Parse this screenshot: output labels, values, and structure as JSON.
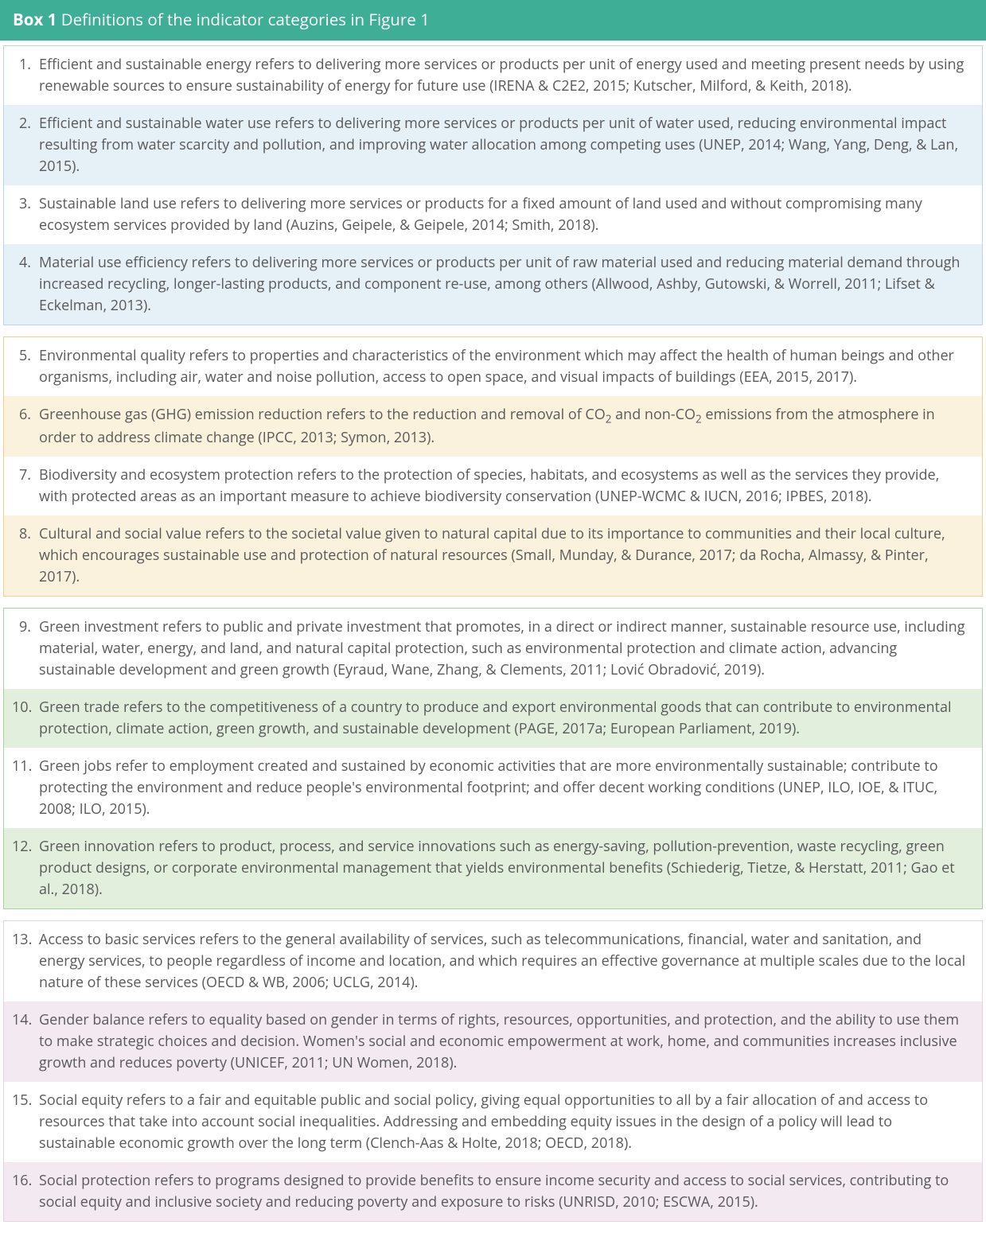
{
  "header": {
    "strong": "Box 1",
    "rest": " Definitions of the indicator categories in Figure 1",
    "bg": "#3eae96"
  },
  "groups": [
    {
      "border": "#b6d8ea",
      "bg_odd": "#ffffff",
      "bg_even": "#e5f0f7",
      "items": [
        {
          "n": "1.",
          "t": "Efficient and sustainable energy refers to delivering more services or products per unit of energy used and meeting present needs by using renewable sources to ensure sustainability of energy for future use (IRENA & C2E2, 2015; Kutscher, Milford, & Keith, 2018)."
        },
        {
          "n": "2.",
          "t": "Efficient and sustainable water use refers to delivering more services or products per unit of water used, reducing environmental impact resulting from water scarcity and pollution, and improving water allocation among competing uses (UNEP, 2014; Wang, Yang, Deng, & Lan, 2015)."
        },
        {
          "n": "3.",
          "t": "Sustainable land use refers to delivering more services or products for a fixed amount of land used and without compromising many ecosystem services provided by land (Auzins, Geipele, & Geipele, 2014; Smith, 2018)."
        },
        {
          "n": "4.",
          "t": "Material use efficiency refers to delivering more services or products per unit of raw material used and reducing material demand through increased recycling, longer-lasting products, and component re-use, among others (Allwood, Ashby, Gutowski, & Worrell, 2011; Lifset & Eckelman, 2013)."
        }
      ]
    },
    {
      "border": "#f0cf8f",
      "bg_odd": "#ffffff",
      "bg_even": "#fbf2de",
      "items": [
        {
          "n": "5.",
          "t": "Environmental quality refers to properties and characteristics of the environment which may affect the health of human beings and other organisms, including air, water and noise pollution, access to open space, and visual impacts of buildings (EEA, 2015, 2017)."
        },
        {
          "n": "6.",
          "html": "Greenhouse gas (GHG) emission reduction refers to the reduction and removal of CO<sub>2</sub> and non-CO<sub>2</sub> emissions from the atmosphere in order to address climate change (IPCC, 2013; Symon, 2013)."
        },
        {
          "n": "7.",
          "t": "Biodiversity and ecosystem protection refers to the protection of species, habitats, and ecosystems as well as the services they provide, with protected areas as an important measure to achieve biodiversity conservation (UNEP-WCMC & IUCN, 2016; IPBES, 2018)."
        },
        {
          "n": "8.",
          "t": "Cultural and social value refers to the societal value given to natural capital due to its importance to communities and their local culture, which encourages sustainable use and protection of natural resources (Small, Munday, & Durance, 2017; da Rocha, Almassy, & Pinter, 2017)."
        }
      ]
    },
    {
      "border": "#a8d2a5",
      "bg_odd": "#ffffff",
      "bg_even": "#e2efdd",
      "items": [
        {
          "n": "9.",
          "t": "Green investment refers to public and private investment that promotes, in a direct or indirect manner, sustainable resource use, including material, water, energy, and land, and natural capital protection, such as environmental protection and climate action, advancing sustainable development and green growth (Eyraud, Wane, Zhang, & Clements, 2011; Lović Obradović, 2019)."
        },
        {
          "n": "10.",
          "t": "Green trade refers to the competitiveness of a country to produce and export environmental goods that can contribute to environmental protection, climate action, green growth, and sustainable development  (PAGE, 2017a; European Parliament, 2019)."
        },
        {
          "n": "11.",
          "t": "Green jobs refer to employment created and sustained by economic activities that are more environmentally sustainable; contribute to protecting the environment and reduce people's environmental footprint; and offer decent working conditions (UNEP, ILO, IOE, & ITUC, 2008; ILO, 2015)."
        },
        {
          "n": "12.",
          "t": "Green innovation refers to product, process, and service innovations such as energy-saving, pollution-prevention, waste recycling, green product designs, or corporate environmental management that yields environmental benefits (Schiederig, Tietze, & Herstatt, 2011; Gao et al., 2018)."
        }
      ]
    },
    {
      "border": "#e7d3e2",
      "bg_odd": "#ffffff",
      "bg_even": "#f3e9f0",
      "items": [
        {
          "n": "13.",
          "t": "Access to basic services refers to the general availability of services, such as telecommunications, financial, water and sanitation, and energy services, to people regardless of income and location, and which requires an effective governance at multiple scales due to the local nature of these services (OECD & WB, 2006; UCLG, 2014)."
        },
        {
          "n": "14.",
          "t": "Gender balance refers to equality based on gender in terms of rights, resources, opportunities, and protection, and the ability to use them to make strategic choices and decision. Women's social and economic empowerment at work, home, and communities increases inclusive growth and reduces poverty (UNICEF, 2011; UN Women, 2018)."
        },
        {
          "n": "15.",
          "t": "Social equity refers to a fair and equitable public and social policy, giving equal opportunities to all by a fair allocation of and access to resources that take into account social inequalities. Addressing and embedding equity issues in the design of a policy will lead to sustainable economic growth over the long term (Clench-Aas & Holte, 2018; OECD, 2018)."
        },
        {
          "n": "16.",
          "t": "Social protection refers to programs designed to provide benefits to ensure income security and access to social services, contributing to social equity and inclusive society and reducing poverty and exposure to risks (UNRISD, 2010; ESCWA, 2015)."
        }
      ]
    }
  ]
}
